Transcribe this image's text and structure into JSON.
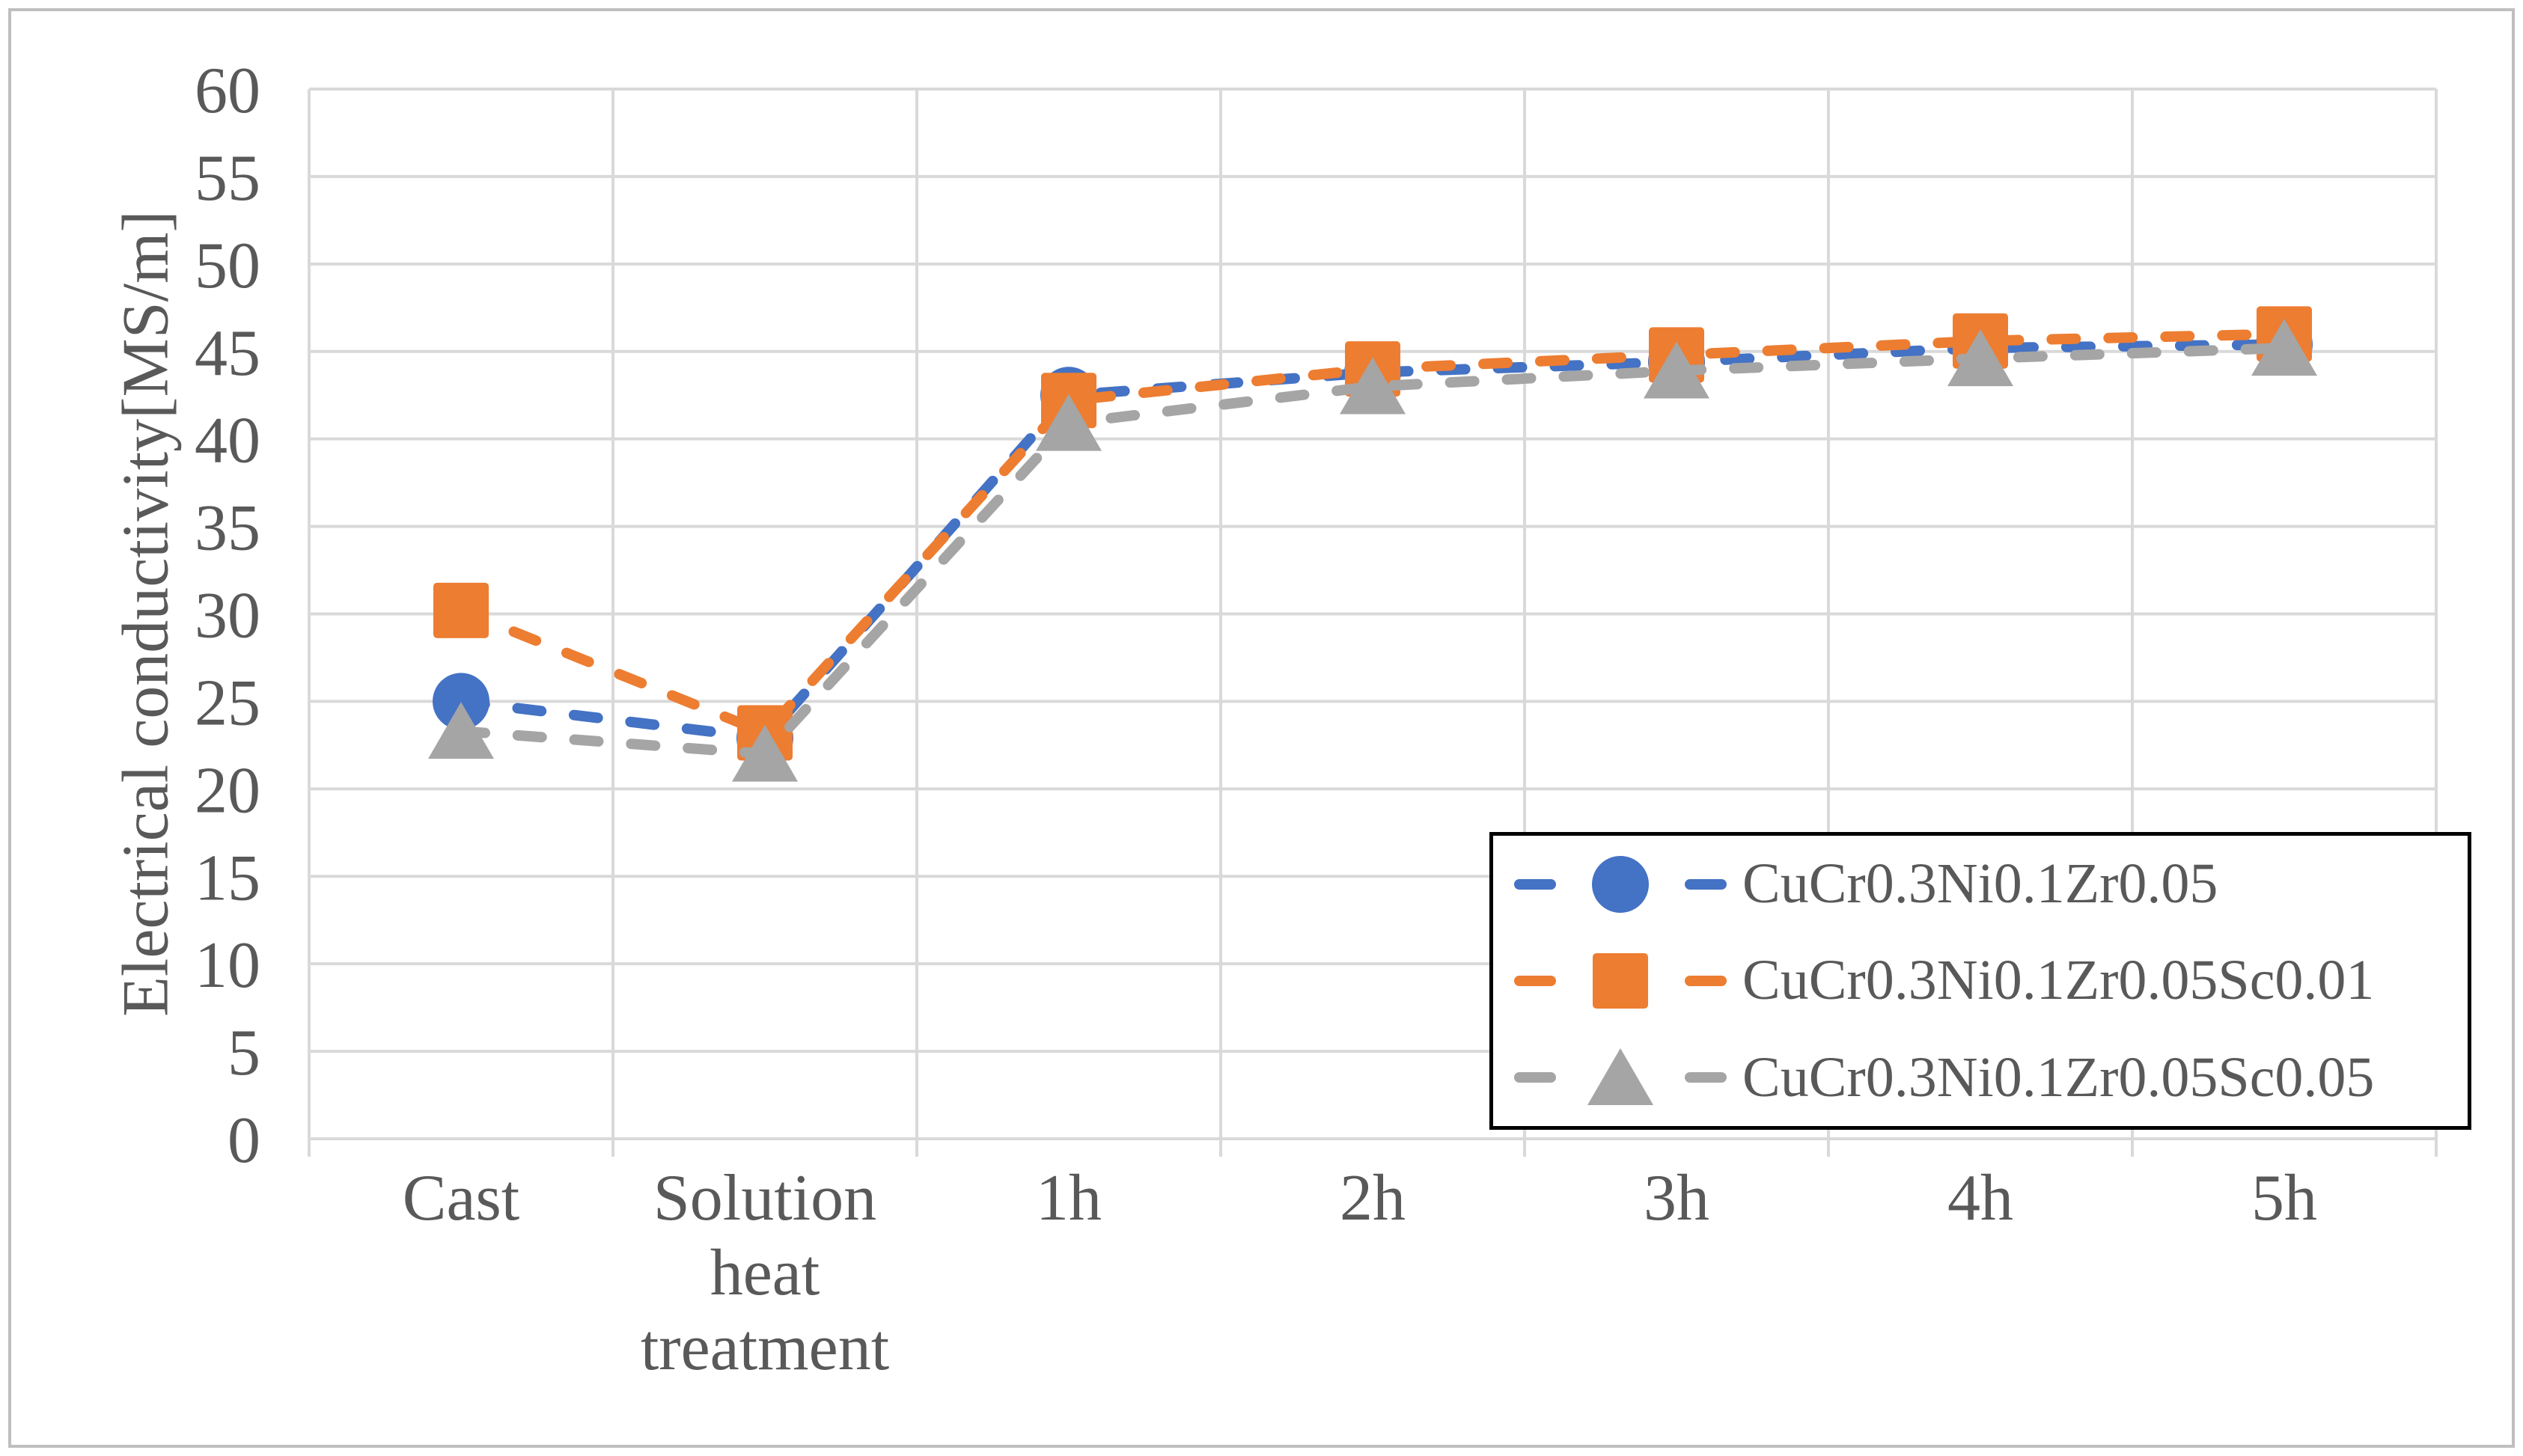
{
  "figure": {
    "background": "#FFFFFF",
    "border_color": "#BFBFBF",
    "gridline_color": "#D9D9D9",
    "axis_text_color": "#595959",
    "legend_border_color": "#000000"
  },
  "chart_data": {
    "type": "line",
    "title": "",
    "xlabel": "",
    "ylabel": "Electrical conductivity[MS/m]",
    "ylim": [
      0,
      60
    ],
    "ytick_step": 5,
    "yticks": [
      0,
      5,
      10,
      15,
      20,
      25,
      30,
      35,
      40,
      45,
      50,
      55,
      60
    ],
    "grid": true,
    "legend_position": "inside-bottom-right",
    "line_style": "dashed",
    "categories": [
      "Cast",
      "Solution heat treatment",
      "1h",
      "2h",
      "3h",
      "4h",
      "5h"
    ],
    "category_label_lines": [
      [
        "Cast"
      ],
      [
        "Solution",
        "heat",
        "treatment"
      ],
      [
        "1h"
      ],
      [
        "2h"
      ],
      [
        "3h"
      ],
      [
        "4h"
      ],
      [
        "5h"
      ]
    ],
    "series": [
      {
        "name": "CuCr0.3Ni0.1Zr0.05",
        "color": "#4472C4",
        "marker": "circle",
        "values": [
          25.0,
          22.9,
          42.5,
          43.8,
          44.4,
          45.2,
          45.4
        ]
      },
      {
        "name": "CuCr0.3Ni0.1Zr0.05Sc0.01",
        "color": "#ED7D31",
        "marker": "square",
        "values": [
          30.2,
          23.2,
          42.2,
          44.0,
          44.8,
          45.6,
          46.0
        ]
      },
      {
        "name": "CuCr0.3Ni0.1Zr0.05Sc0.05",
        "color": "#A5A5A5",
        "marker": "triangle",
        "values": [
          23.3,
          22.0,
          40.9,
          43.0,
          43.9,
          44.6,
          45.2
        ]
      }
    ]
  }
}
